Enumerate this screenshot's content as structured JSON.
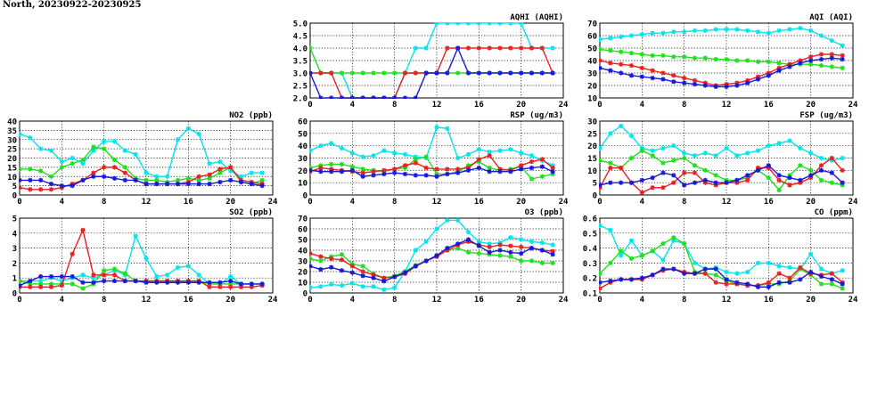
{
  "page": {
    "title": "North, 20230922-20230925"
  },
  "colors": {
    "cyan": "#00e5ee",
    "green": "#1ee01e",
    "red": "#e82020",
    "blue": "#1818d8",
    "grid": "#000000"
  },
  "chart_data": [
    {
      "id": "aqhi",
      "type": "line",
      "title": "AQHI (AQHI)",
      "xlim": [
        0,
        24
      ],
      "xticks": [
        0,
        4,
        8,
        12,
        16,
        20,
        24
      ],
      "ylim": [
        2.0,
        5.0
      ],
      "yticks": [
        2.0,
        2.5,
        3.0,
        3.5,
        4.0,
        4.5,
        5.0
      ],
      "ytick_decimals": 1,
      "grid": true,
      "series": [
        {
          "color": "cyan",
          "values": [
            3,
            3,
            3,
            3,
            2,
            2,
            2,
            2,
            2,
            3,
            4,
            4,
            5,
            5,
            5,
            5,
            5,
            5,
            5,
            5,
            5,
            4,
            4,
            4
          ]
        },
        {
          "color": "green",
          "values": [
            4,
            3,
            3,
            3,
            3,
            3,
            3,
            3,
            3,
            3,
            3,
            3,
            3,
            3,
            3,
            3,
            3,
            3,
            3,
            3,
            3,
            3,
            3,
            3
          ]
        },
        {
          "color": "red",
          "values": [
            3,
            3,
            3,
            2,
            2,
            2,
            2,
            2,
            2,
            3,
            3,
            3,
            3,
            4,
            4,
            4,
            4,
            4,
            4,
            4,
            4,
            4,
            4,
            3
          ]
        },
        {
          "color": "blue",
          "values": [
            3,
            2,
            2,
            2,
            2,
            2,
            2,
            2,
            2,
            2,
            2,
            3,
            3,
            3,
            4,
            3,
            3,
            3,
            3,
            3,
            3,
            3,
            3,
            3
          ]
        }
      ]
    },
    {
      "id": "aqi",
      "type": "line",
      "title": "AQI (AQI)",
      "xlim": [
        0,
        24
      ],
      "xticks": [
        0,
        4,
        8,
        12,
        16,
        20,
        24
      ],
      "ylim": [
        10,
        70
      ],
      "yticks": [
        10,
        20,
        30,
        40,
        50,
        60,
        70
      ],
      "ytick_decimals": 0,
      "grid": true,
      "series": [
        {
          "color": "cyan",
          "values": [
            57,
            58,
            59,
            60,
            61,
            62,
            62,
            63,
            63,
            64,
            64,
            65,
            65,
            65,
            64,
            63,
            62,
            64,
            65,
            66,
            64,
            60,
            56,
            52
          ]
        },
        {
          "color": "green",
          "values": [
            49,
            48,
            47,
            46,
            45,
            44,
            44,
            43,
            43,
            42,
            42,
            41,
            41,
            40,
            40,
            39,
            39,
            38,
            37,
            37,
            37,
            36,
            35,
            34
          ]
        },
        {
          "color": "red",
          "values": [
            40,
            38,
            37,
            36,
            34,
            32,
            30,
            28,
            26,
            24,
            22,
            20,
            21,
            22,
            24,
            27,
            30,
            34,
            37,
            40,
            43,
            45,
            45,
            44
          ]
        },
        {
          "color": "blue",
          "values": [
            34,
            32,
            30,
            28,
            27,
            26,
            25,
            23,
            22,
            21,
            20,
            19,
            19,
            20,
            22,
            25,
            28,
            32,
            35,
            38,
            40,
            41,
            42,
            41
          ]
        }
      ]
    },
    {
      "id": "no2",
      "type": "line",
      "title": "NO2 (ppb)",
      "xlim": [
        0,
        24
      ],
      "xticks": [
        0,
        4,
        8,
        12,
        16,
        20,
        24
      ],
      "ylim": [
        0,
        40
      ],
      "yticks": [
        0,
        5,
        10,
        15,
        20,
        25,
        30,
        35,
        40
      ],
      "ytick_decimals": 0,
      "grid": true,
      "series": [
        {
          "color": "cyan",
          "values": [
            33,
            31,
            25,
            24,
            18,
            20,
            17,
            24,
            29,
            29,
            24,
            22,
            12,
            10,
            10,
            30,
            36,
            33,
            17,
            18,
            13,
            10,
            12,
            12
          ]
        },
        {
          "color": "green",
          "values": [
            14,
            14,
            13,
            10,
            15,
            17,
            19,
            26,
            25,
            19,
            15,
            9,
            8,
            8,
            7,
            8,
            9,
            8,
            9,
            12,
            15,
            7,
            6,
            8
          ]
        },
        {
          "color": "red",
          "values": [
            4,
            3,
            3,
            3,
            4,
            6,
            8,
            12,
            15,
            15,
            12,
            8,
            6,
            6,
            6,
            6,
            7,
            10,
            11,
            14,
            15,
            8,
            7,
            6
          ]
        },
        {
          "color": "blue",
          "values": [
            8,
            8,
            8,
            6,
            5,
            5,
            8,
            10,
            10,
            9,
            8,
            8,
            6,
            6,
            6,
            6,
            6,
            6,
            6,
            7,
            8,
            7,
            6,
            5
          ]
        }
      ]
    },
    {
      "id": "rsp",
      "type": "line",
      "title": "RSP (ug/m3)",
      "xlim": [
        0,
        24
      ],
      "xticks": [
        0,
        4,
        8,
        12,
        16,
        20,
        24
      ],
      "ylim": [
        0,
        60
      ],
      "yticks": [
        0,
        10,
        20,
        30,
        40,
        50,
        60
      ],
      "ytick_decimals": 0,
      "grid": true,
      "series": [
        {
          "color": "cyan",
          "values": [
            36,
            40,
            42,
            38,
            34,
            31,
            32,
            36,
            34,
            33,
            31,
            30,
            55,
            54,
            30,
            33,
            37,
            35,
            36,
            37,
            34,
            32,
            28,
            24
          ]
        },
        {
          "color": "green",
          "values": [
            22,
            24,
            25,
            25,
            23,
            21,
            20,
            19,
            21,
            22,
            29,
            31,
            17,
            17,
            19,
            24,
            27,
            22,
            20,
            21,
            23,
            13,
            15,
            17
          ]
        },
        {
          "color": "red",
          "values": [
            19,
            22,
            21,
            20,
            19,
            18,
            19,
            20,
            21,
            24,
            26,
            22,
            21,
            21,
            21,
            22,
            29,
            32,
            21,
            20,
            24,
            27,
            29,
            22
          ]
        },
        {
          "color": "blue",
          "values": [
            20,
            19,
            19,
            19,
            20,
            15,
            16,
            17,
            18,
            17,
            16,
            16,
            15,
            17,
            18,
            20,
            22,
            19,
            19,
            19,
            21,
            22,
            23,
            19
          ]
        }
      ]
    },
    {
      "id": "fsp",
      "type": "line",
      "title": "FSP (ug/m3)",
      "xlim": [
        0,
        24
      ],
      "xticks": [
        0,
        4,
        8,
        12,
        16,
        20,
        24
      ],
      "ylim": [
        0,
        30
      ],
      "yticks": [
        0,
        5,
        10,
        15,
        20,
        25,
        30
      ],
      "ytick_decimals": 0,
      "grid": true,
      "series": [
        {
          "color": "cyan",
          "values": [
            19,
            25,
            28,
            24,
            19,
            18,
            19,
            20,
            17,
            16,
            17,
            16,
            19,
            16,
            17,
            18,
            20,
            21,
            22,
            19,
            17,
            15,
            14,
            15
          ]
        },
        {
          "color": "green",
          "values": [
            14,
            13,
            11,
            15,
            18,
            16,
            13,
            14,
            15,
            12,
            10,
            8,
            6,
            6,
            7,
            10,
            7,
            2,
            8,
            12,
            10,
            6,
            5,
            4
          ]
        },
        {
          "color": "red",
          "values": [
            3,
            11,
            11,
            5,
            1,
            3,
            3,
            5,
            9,
            9,
            5,
            4,
            5,
            5,
            6,
            11,
            11,
            6,
            4,
            5,
            7,
            12,
            15,
            10
          ]
        },
        {
          "color": "blue",
          "values": [
            4,
            5,
            5,
            5,
            6,
            7,
            9,
            8,
            4,
            5,
            6,
            5,
            5,
            6,
            8,
            10,
            12,
            8,
            7,
            6,
            8,
            10,
            9,
            5
          ]
        }
      ]
    },
    {
      "id": "so2",
      "type": "line",
      "title": "SO2 (ppb)",
      "xlim": [
        0,
        24
      ],
      "xticks": [
        0,
        4,
        8,
        12,
        16,
        20,
        24
      ],
      "ylim": [
        0,
        5
      ],
      "yticks": [
        0,
        1,
        2,
        3,
        4,
        5
      ],
      "ytick_decimals": 0,
      "grid": true,
      "series": [
        {
          "color": "cyan",
          "values": [
            0.8,
            0.8,
            0.8,
            1.0,
            0.8,
            1.0,
            1.2,
            1.0,
            1.2,
            1.5,
            1.2,
            3.8,
            2.3,
            1.1,
            1.2,
            1.7,
            1.8,
            1.2,
            0.6,
            0.6,
            1.1,
            0.6,
            0.6,
            0.6
          ]
        },
        {
          "color": "green",
          "values": [
            0.8,
            0.6,
            0.6,
            0.6,
            0.6,
            0.6,
            0.3,
            0.6,
            1.5,
            1.6,
            1.3,
            0.8,
            0.8,
            0.8,
            0.8,
            0.8,
            0.8,
            0.8,
            0.6,
            0.6,
            0.6,
            0.6,
            0.6,
            0.6
          ]
        },
        {
          "color": "red",
          "values": [
            0.4,
            0.4,
            0.4,
            0.4,
            0.5,
            2.6,
            4.2,
            1.2,
            1.2,
            1.2,
            0.8,
            0.8,
            0.8,
            0.8,
            0.8,
            0.8,
            0.8,
            0.8,
            0.4,
            0.4,
            0.4,
            0.4,
            0.4,
            0.5
          ]
        },
        {
          "color": "blue",
          "values": [
            0.5,
            0.8,
            1.1,
            1.1,
            1.1,
            1.1,
            0.7,
            0.7,
            0.8,
            0.8,
            0.8,
            0.8,
            0.7,
            0.7,
            0.7,
            0.7,
            0.7,
            0.7,
            0.7,
            0.7,
            0.8,
            0.6,
            0.6,
            0.6
          ]
        }
      ]
    },
    {
      "id": "o3",
      "type": "line",
      "title": "O3 (ppb)",
      "xlim": [
        0,
        24
      ],
      "xticks": [
        0,
        4,
        8,
        12,
        16,
        20,
        24
      ],
      "ylim": [
        0,
        70
      ],
      "yticks": [
        0,
        10,
        20,
        30,
        40,
        50,
        60,
        70
      ],
      "ytick_decimals": 0,
      "grid": true,
      "series": [
        {
          "color": "cyan",
          "values": [
            5,
            6,
            8,
            7,
            9,
            6,
            6,
            3,
            5,
            20,
            40,
            48,
            60,
            68,
            68,
            57,
            48,
            46,
            47,
            52,
            50,
            48,
            47,
            45
          ]
        },
        {
          "color": "green",
          "values": [
            32,
            30,
            34,
            36,
            27,
            25,
            18,
            14,
            16,
            20,
            26,
            30,
            35,
            40,
            42,
            38,
            37,
            36,
            35,
            34,
            30,
            30,
            28,
            28
          ]
        },
        {
          "color": "red",
          "values": [
            37,
            34,
            32,
            31,
            25,
            20,
            17,
            14,
            15,
            18,
            25,
            30,
            34,
            40,
            45,
            48,
            45,
            43,
            45,
            44,
            43,
            42,
            40,
            39
          ]
        },
        {
          "color": "blue",
          "values": [
            25,
            22,
            24,
            21,
            19,
            16,
            14,
            11,
            15,
            19,
            25,
            30,
            35,
            42,
            46,
            50,
            44,
            38,
            40,
            38,
            37,
            42,
            40,
            36
          ]
        }
      ]
    },
    {
      "id": "co",
      "type": "line",
      "title": "CO (ppm)",
      "xlim": [
        0,
        24
      ],
      "xticks": [
        0,
        4,
        8,
        12,
        16,
        20,
        24
      ],
      "ylim": [
        0.1,
        0.6
      ],
      "yticks": [
        0.1,
        0.2,
        0.3,
        0.4,
        0.5,
        0.6
      ],
      "ytick_decimals": 1,
      "grid": true,
      "series": [
        {
          "color": "cyan",
          "values": [
            0.55,
            0.52,
            0.35,
            0.45,
            0.35,
            0.38,
            0.32,
            0.45,
            0.43,
            0.3,
            0.26,
            0.27,
            0.24,
            0.23,
            0.24,
            0.3,
            0.3,
            0.28,
            0.27,
            0.26,
            0.36,
            0.26,
            0.23,
            0.25
          ]
        },
        {
          "color": "green",
          "values": [
            0.23,
            0.3,
            0.38,
            0.33,
            0.35,
            0.38,
            0.43,
            0.47,
            0.43,
            0.24,
            0.23,
            0.22,
            0.18,
            0.16,
            0.15,
            0.15,
            0.16,
            0.16,
            0.18,
            0.26,
            0.22,
            0.16,
            0.16,
            0.13
          ]
        },
        {
          "color": "red",
          "values": [
            0.13,
            0.17,
            0.19,
            0.19,
            0.19,
            0.22,
            0.25,
            0.26,
            0.24,
            0.23,
            0.23,
            0.17,
            0.16,
            0.16,
            0.15,
            0.15,
            0.17,
            0.23,
            0.2,
            0.27,
            0.23,
            0.22,
            0.23,
            0.17
          ]
        },
        {
          "color": "blue",
          "values": [
            0.17,
            0.18,
            0.19,
            0.19,
            0.2,
            0.22,
            0.26,
            0.26,
            0.23,
            0.23,
            0.26,
            0.26,
            0.19,
            0.17,
            0.16,
            0.14,
            0.14,
            0.17,
            0.17,
            0.19,
            0.24,
            0.21,
            0.19,
            0.16
          ]
        }
      ]
    }
  ]
}
